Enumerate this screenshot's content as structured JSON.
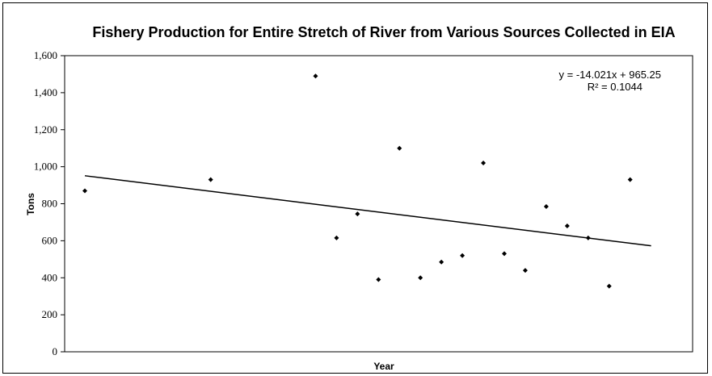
{
  "chart_data": {
    "type": "scatter",
    "title": "Fishery Production for Entire Stretch of River from Various Sources Collected in EIA",
    "xlabel": "Year",
    "ylabel": "Tons",
    "ylim": [
      0,
      1600
    ],
    "yticks": [
      0,
      200,
      400,
      600,
      800,
      1000,
      1200,
      1400,
      1600
    ],
    "ytick_labels": [
      "0",
      "200",
      "400",
      "600",
      "800",
      "1,000",
      "1,200",
      "1,400",
      "1,600"
    ],
    "xlim": [
      0,
      28
    ],
    "grid": false,
    "series": [
      {
        "x": [
          1,
          7,
          12,
          13,
          14,
          15,
          16,
          17,
          18,
          19,
          20,
          21,
          22,
          23,
          24,
          25,
          26,
          27,
          28
        ],
        "y": [
          870,
          930,
          1490,
          615,
          745,
          390,
          1100,
          400,
          485,
          520,
          1020,
          530,
          440,
          785,
          680,
          615,
          355,
          930,
          null
        ],
        "color": "#000000"
      }
    ],
    "trendline": {
      "x_range": [
        1,
        28
      ],
      "slope": -14.021,
      "intercept": 965.25,
      "equation": "y = -14.021x + 965.25",
      "r_squared": "R² = 0.1044"
    }
  }
}
